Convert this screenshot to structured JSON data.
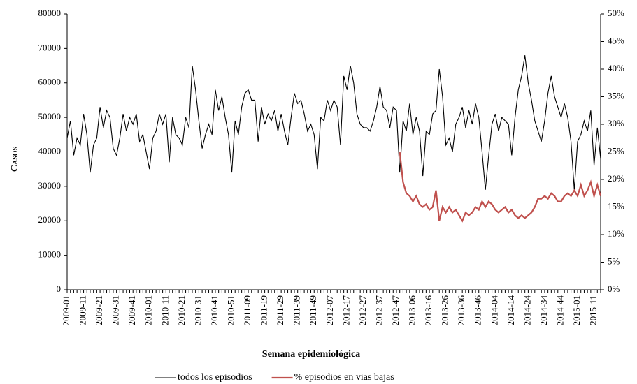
{
  "chart_data": {
    "type": "line",
    "x_label": "Semana epidemiológica",
    "y_label": "Casos",
    "categories": [
      "2009-01",
      null,
      null,
      null,
      null,
      "2009-11",
      null,
      null,
      null,
      null,
      "2009-21",
      null,
      null,
      null,
      null,
      "2009-31",
      null,
      null,
      null,
      null,
      "2009-41",
      null,
      null,
      null,
      null,
      "2010-01",
      null,
      null,
      null,
      null,
      "2010-11",
      null,
      null,
      null,
      null,
      "2010-21",
      null,
      null,
      null,
      null,
      "2010-31",
      null,
      null,
      null,
      null,
      "2010-41",
      null,
      null,
      null,
      null,
      "2010-51",
      null,
      null,
      null,
      null,
      "2011-09",
      null,
      null,
      null,
      null,
      "2011-19",
      null,
      null,
      null,
      null,
      "2011-29",
      null,
      null,
      null,
      null,
      "2011-39",
      null,
      null,
      null,
      null,
      "2011-49",
      null,
      null,
      null,
      null,
      "2012-07",
      null,
      null,
      null,
      null,
      "2012-17",
      null,
      null,
      null,
      null,
      "2012-27",
      null,
      null,
      null,
      null,
      "2012-37",
      null,
      null,
      null,
      null,
      "2012-47",
      null,
      null,
      null,
      null,
      "2013-06",
      null,
      null,
      null,
      null,
      "2013-16",
      null,
      null,
      null,
      null,
      "2013-26",
      null,
      null,
      null,
      null,
      "2013-36",
      null,
      null,
      null,
      null,
      "2013-46",
      null,
      null,
      null,
      null,
      "2014-04",
      null,
      null,
      null,
      null,
      "2014-14",
      null,
      null,
      null,
      null,
      "2014-24",
      null,
      null,
      null,
      null,
      "2014-34",
      null,
      null,
      null,
      null,
      "2014-44",
      null,
      null,
      null,
      null,
      "2015-01",
      null,
      null,
      null,
      null,
      "2015-11",
      null,
      null
    ],
    "series": [
      {
        "name": "todos los episodios",
        "color": "#000000",
        "values": [
          44000,
          49000,
          39000,
          44000,
          42000,
          51000,
          45000,
          34000,
          42000,
          44000,
          53000,
          47000,
          52000,
          50000,
          41000,
          39000,
          44000,
          51000,
          46000,
          50000,
          48000,
          51000,
          43000,
          45000,
          40000,
          35000,
          44000,
          46000,
          51000,
          48000,
          51000,
          37000,
          50000,
          45000,
          44000,
          42000,
          50000,
          47000,
          65000,
          58000,
          49000,
          41000,
          45000,
          48000,
          45000,
          58000,
          52000,
          56000,
          50000,
          45000,
          34000,
          49000,
          45000,
          53000,
          57000,
          58000,
          55000,
          55000,
          43000,
          53000,
          48000,
          51000,
          49000,
          52000,
          46000,
          51000,
          46000,
          42000,
          50000,
          57000,
          54000,
          55000,
          51000,
          46000,
          48000,
          45000,
          35000,
          50000,
          49000,
          55000,
          52000,
          55000,
          53000,
          42000,
          62000,
          58000,
          65000,
          60000,
          51000,
          48000,
          47000,
          47000,
          46000,
          49000,
          53000,
          59000,
          53000,
          52000,
          47000,
          53000,
          52000,
          34000,
          49000,
          46000,
          54000,
          45000,
          50000,
          46000,
          33000,
          46000,
          45000,
          51000,
          52000,
          64000,
          56000,
          42000,
          44000,
          40000,
          48000,
          50000,
          53000,
          47000,
          52000,
          48000,
          54000,
          50000,
          40000,
          29000,
          39000,
          48000,
          51000,
          46000,
          50000,
          49000,
          48000,
          39000,
          50000,
          58000,
          62000,
          68000,
          60000,
          55000,
          49000,
          46000,
          43000,
          49000,
          57000,
          62000,
          56000,
          53000,
          50000,
          54000,
          50000,
          43000,
          29000,
          43000,
          45000,
          49000,
          46000,
          52000,
          36000,
          47000,
          38000
        ]
      },
      {
        "name": "% episodios en vias bajas",
        "color": "#c0504d",
        "axis": "y2",
        "values": [
          null,
          null,
          null,
          null,
          null,
          null,
          null,
          null,
          null,
          null,
          null,
          null,
          null,
          null,
          null,
          null,
          null,
          null,
          null,
          null,
          null,
          null,
          null,
          null,
          null,
          null,
          null,
          null,
          null,
          null,
          null,
          null,
          null,
          null,
          null,
          null,
          null,
          null,
          null,
          null,
          null,
          null,
          null,
          null,
          null,
          null,
          null,
          null,
          null,
          null,
          null,
          null,
          null,
          null,
          null,
          null,
          null,
          null,
          null,
          null,
          null,
          null,
          null,
          null,
          null,
          null,
          null,
          null,
          null,
          null,
          null,
          null,
          null,
          null,
          null,
          null,
          null,
          null,
          null,
          null,
          null,
          null,
          null,
          null,
          null,
          null,
          null,
          null,
          null,
          null,
          null,
          null,
          null,
          null,
          null,
          null,
          null,
          null,
          null,
          null,
          null,
          25,
          19.5,
          17.5,
          17,
          16,
          17,
          15.5,
          15,
          15.5,
          14.5,
          15,
          18,
          12.5,
          15,
          14,
          15,
          14,
          14.5,
          13.5,
          12.5,
          14,
          13.5,
          14,
          15,
          14.5,
          16,
          15,
          16,
          15.5,
          14.5,
          14,
          14.5,
          15,
          14,
          14.5,
          13.5,
          13,
          13.5,
          13,
          13.5,
          14,
          15,
          16.5,
          16.5,
          17,
          16.5,
          17.5,
          17,
          16,
          16,
          17,
          17.5,
          17,
          18,
          17,
          19,
          17,
          18,
          19.5,
          17,
          19,
          17
        ]
      }
    ],
    "ylim": [
      0,
      80000
    ],
    "yticks": [
      0,
      10000,
      20000,
      30000,
      40000,
      50000,
      60000,
      70000,
      80000
    ],
    "y2lim": [
      0,
      50
    ],
    "y2ticks": [
      {
        "value": 0,
        "label": "0%"
      },
      {
        "value": 5,
        "label": "5%"
      },
      {
        "value": 10,
        "label": "10%"
      },
      {
        "value": 15,
        "label": "15%"
      },
      {
        "value": 20,
        "label": "20%"
      },
      {
        "value": 25,
        "label": "25%"
      },
      {
        "value": 30,
        "label": "30%"
      },
      {
        "value": 35,
        "label": "35%"
      },
      {
        "value": 40,
        "label": "40%"
      },
      {
        "value": 45,
        "label": "45%"
      },
      {
        "value": 50,
        "label": "50%"
      }
    ],
    "grid": false,
    "legend": "bottom"
  }
}
